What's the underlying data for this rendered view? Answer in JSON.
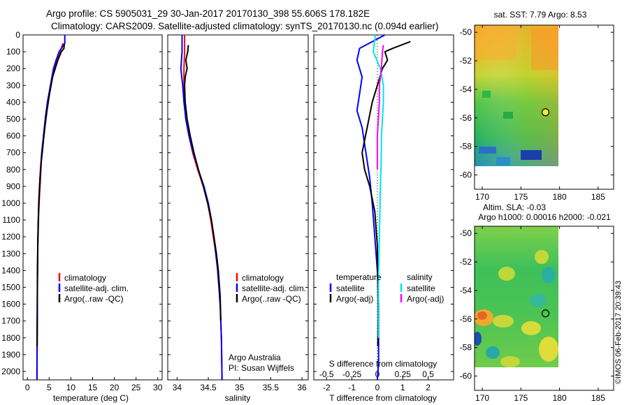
{
  "header": {
    "line1": "Argo profile: CS 5905031_29 30-Jan-2017 20170130_398 55.606S 178.182E",
    "line2": "Climatology: CARS2009. Satellite-adjusted climatology: synTS_20170130.nc (0.094d earlier)"
  },
  "watermark": "©IMOS 06-Feb-2017 20:39:43",
  "colors": {
    "climatology": "#ff0000",
    "satellite": "#0000ff",
    "argo": "#000000",
    "salinity_satellite": "#00e5e5",
    "salinity_argo": "#ff00ff"
  },
  "chart_data": [
    {
      "type": "line",
      "ylim": [
        2050,
        0
      ],
      "yticks": [
        0,
        100,
        200,
        300,
        400,
        500,
        600,
        700,
        800,
        900,
        1000,
        1100,
        1200,
        1300,
        1400,
        1500,
        1600,
        1700,
        1800,
        1900,
        2000
      ],
      "xlabel": "temperature (deg C)",
      "xlim": [
        -1,
        31
      ],
      "xticks": [
        0,
        5,
        10,
        15,
        20,
        25,
        30
      ],
      "legend": [
        "climatology",
        "satellite-adj. clim.",
        "Argo(..raw -QC)"
      ],
      "legend_position": "lower-center",
      "series": [
        {
          "name": "climatology",
          "color": "#ff0000",
          "x": [
            8.2,
            7.5,
            6.9,
            6.2,
            5.7,
            5.0,
            4.5,
            4.0,
            3.6,
            3.2,
            3.0,
            2.8,
            2.6,
            2.5,
            2.4,
            2.35,
            2.3,
            2.3,
            2.25,
            2.2,
            2.2
          ],
          "y": [
            50,
            100,
            150,
            200,
            250,
            350,
            450,
            550,
            650,
            750,
            850,
            950,
            1050,
            1150,
            1250,
            1400,
            1550,
            1700,
            1850,
            2000,
            2050
          ]
        },
        {
          "name": "satellite-adj. clim.",
          "color": "#0000ff",
          "x": [
            8.6,
            8.6,
            7.3,
            6.6,
            6.0,
            5.3,
            4.6,
            4.1,
            3.7,
            3.3,
            3.0,
            2.8,
            2.6,
            2.5,
            2.4,
            2.35,
            2.3,
            2.3,
            2.25,
            2.2,
            2.2
          ],
          "y": [
            0,
            50,
            100,
            150,
            200,
            300,
            400,
            500,
            600,
            700,
            800,
            900,
            1000,
            1100,
            1200,
            1350,
            1500,
            1650,
            1800,
            1950,
            2050
          ]
        },
        {
          "name": "Argo(..raw -QC)",
          "color": "#000000",
          "x": [
            8.5,
            8.4,
            7.8,
            7.0,
            6.4,
            5.8,
            5.1,
            4.5,
            4.0,
            3.6,
            3.2,
            2.9,
            2.7,
            2.5,
            2.4,
            2.3,
            2.25,
            2.2
          ],
          "y": [
            50,
            80,
            100,
            150,
            200,
            250,
            350,
            450,
            550,
            650,
            750,
            850,
            950,
            1100,
            1250,
            1450,
            1650,
            1850
          ]
        }
      ]
    },
    {
      "type": "line",
      "ylim": [
        2050,
        0
      ],
      "xlabel": "salinity",
      "xlim": [
        33.85,
        36.1
      ],
      "xticks": [
        34,
        34.5,
        35,
        35.5,
        36
      ],
      "legend": [
        "climatology",
        "satellite-adj. clim.",
        "Argo(..raw -QC)"
      ],
      "legend_position": "lower-center",
      "annotation": [
        "Argo Australia",
        "PI: Susan Wijffels"
      ],
      "series": [
        {
          "name": "climatology",
          "color": "#ff0000",
          "x": [
            34.12,
            34.12,
            34.11,
            34.11,
            34.12,
            34.14,
            34.19,
            34.25,
            34.33,
            34.42,
            34.49,
            34.54,
            34.58,
            34.62,
            34.65,
            34.67,
            34.69,
            34.7,
            34.71,
            34.72
          ],
          "y": [
            0,
            100,
            200,
            300,
            400,
            500,
            600,
            700,
            800,
            900,
            1000,
            1100,
            1200,
            1300,
            1400,
            1500,
            1600,
            1700,
            1800,
            2050
          ]
        },
        {
          "name": "satellite-adj. clim.",
          "color": "#0000ff",
          "x": [
            34.08,
            34.08,
            34.06,
            34.09,
            34.11,
            34.14,
            34.19,
            34.26,
            34.34,
            34.43,
            34.5,
            34.55,
            34.59,
            34.62,
            34.65,
            34.67,
            34.69,
            34.7,
            34.71,
            34.72
          ],
          "y": [
            0,
            100,
            200,
            300,
            400,
            500,
            600,
            700,
            800,
            900,
            1000,
            1100,
            1200,
            1300,
            1400,
            1500,
            1600,
            1700,
            1800,
            2050
          ]
        },
        {
          "name": "Argo(..raw -QC)",
          "color": "#000000",
          "x": [
            34.18,
            34.17,
            34.14,
            34.16,
            34.13,
            34.12,
            34.13,
            34.16,
            34.21,
            34.27,
            34.34,
            34.42,
            34.49,
            34.55,
            34.59,
            34.63,
            34.66,
            34.69,
            34.7
          ],
          "y": [
            60,
            100,
            150,
            200,
            250,
            300,
            400,
            500,
            600,
            700,
            800,
            900,
            1000,
            1100,
            1200,
            1300,
            1400,
            1550,
            1700
          ]
        }
      ]
    },
    {
      "type": "line",
      "ylim": [
        2050,
        0
      ],
      "xlabel_bottom": "T difference from climatology",
      "xlim_T": [
        -2.5,
        3.0
      ],
      "xticks_T": [
        -2,
        -1,
        0,
        1,
        2
      ],
      "xlabel_top": "S difference from climatology",
      "xlim_S": [
        -0.625,
        0.75
      ],
      "xticks_S": [
        -0.5,
        -0.25,
        0,
        0.25,
        0.5
      ],
      "xticks_S_labels": [
        "-0.5",
        "-0.25",
        "0",
        "0.25",
        "0.5"
      ],
      "legend": {
        "temperature_heading": "temperature",
        "salinity_heading": "salinity",
        "entries": [
          "satellite",
          "Argo(-adj)",
          "satellite",
          "Argo(-adj)"
        ]
      },
      "series": [
        {
          "name": "satellite",
          "quantity": "temperature",
          "color": "#0000ff",
          "x": [
            0.3,
            -0.7,
            -0.8,
            -0.6,
            -0.7,
            -0.8,
            -0.6,
            -0.5,
            -0.4,
            -0.3,
            -0.2,
            -0.1,
            0.0,
            0.05,
            0.05,
            0.05,
            0.0
          ],
          "y": [
            0,
            80,
            150,
            250,
            350,
            450,
            550,
            650,
            750,
            850,
            1000,
            1200,
            1400,
            1600,
            1800,
            1950,
            2050
          ]
        },
        {
          "name": "Argo(-adj)",
          "quantity": "temperature",
          "color": "#000000",
          "x": [
            1.3,
            0.6,
            0.3,
            0.4,
            0.2,
            0.0,
            -0.2,
            -0.4,
            -0.6,
            -0.5,
            -0.3,
            -0.1,
            0.0,
            0.02,
            0.03,
            0.02
          ],
          "y": [
            40,
            80,
            100,
            150,
            200,
            300,
            400,
            550,
            700,
            800,
            900,
            1050,
            1250,
            1450,
            1650,
            1850
          ]
        },
        {
          "name": "satellite",
          "quantity": "salinity",
          "color": "#00e5e5",
          "x": [
            -0.02,
            -0.04,
            0.03,
            0.06,
            0.06,
            0.05,
            0.04,
            0.04,
            0.03,
            0.02,
            0.01,
            0.01
          ],
          "y": [
            0,
            100,
            200,
            300,
            400,
            500,
            600,
            700,
            900,
            1200,
            1500,
            1800
          ]
        },
        {
          "name": "Argo(-adj)",
          "quantity": "salinity",
          "color": "#ff00ff",
          "x": [
            0.06,
            0.05,
            0.04,
            0.02,
            0.02,
            0.01,
            0.0,
            0.0,
            0.0
          ],
          "y": [
            60,
            100,
            200,
            300,
            400,
            500,
            600,
            700,
            800
          ]
        }
      ]
    },
    {
      "type": "heatmap",
      "title": "sat. SST: 7.79 Argo: 8.53",
      "xlim": [
        169,
        187
      ],
      "xticks": [
        170,
        175,
        180,
        185
      ],
      "ylim": [
        -61,
        -49.5
      ],
      "yticks": [
        -50,
        -52,
        -54,
        -56,
        -58,
        -60
      ],
      "yticks_labels": [
        "-50",
        "-52",
        "-54",
        "-56",
        "-58",
        "-60"
      ],
      "data_extent": {
        "lon": [
          169.7,
          180
        ],
        "lat": [
          -60,
          -50
        ]
      },
      "marker": {
        "lon": 178.182,
        "lat": -55.606
      },
      "grid": false
    },
    {
      "type": "heatmap",
      "title": "Altim. SLA: -0.03",
      "subtitle": "Argo h1000: 0.00016 h2000: -0.021",
      "xlim": [
        169,
        187
      ],
      "xticks": [
        170,
        175,
        180,
        185
      ],
      "ylim": [
        -61,
        -49.5
      ],
      "yticks": [
        -50,
        -52,
        -54,
        -56,
        -58,
        -60
      ],
      "yticks_labels": [
        "-50",
        "-52",
        "-54",
        "-56",
        "-58",
        "-60"
      ],
      "data_extent": {
        "lon": [
          169.7,
          180
        ],
        "lat": [
          -60,
          -50
        ]
      },
      "marker": {
        "lon": 178.182,
        "lat": -55.606
      },
      "grid": false
    }
  ]
}
